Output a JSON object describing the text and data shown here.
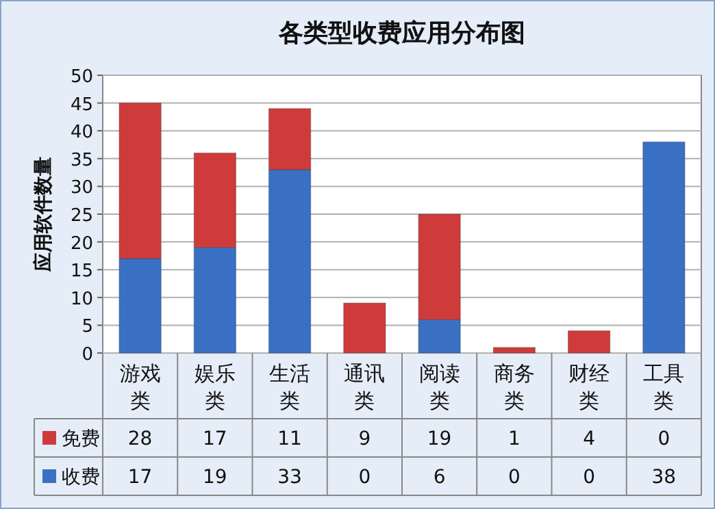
{
  "chart_data": {
    "type": "bar",
    "title": "各类型收费应用分布图",
    "ylabel": "应用软件数量",
    "categories": [
      "游戏类",
      "娱乐类",
      "生活类",
      "通讯类",
      "阅读类",
      "商务类",
      "财经类",
      "工具类"
    ],
    "stacked": true,
    "series": [
      {
        "name": "收费",
        "color": "#3a70c4",
        "values": [
          17,
          19,
          33,
          0,
          6,
          0,
          0,
          38
        ]
      },
      {
        "name": "免费",
        "color": "#cf3b3b",
        "values": [
          28,
          17,
          11,
          9,
          19,
          1,
          4,
          0
        ]
      }
    ],
    "ylim": [
      0,
      50
    ],
    "yticks": [
      0,
      5,
      10,
      15,
      20,
      25,
      30,
      35,
      40,
      45,
      50
    ],
    "grid": "y",
    "legend": "bottom",
    "data_labels": true
  }
}
